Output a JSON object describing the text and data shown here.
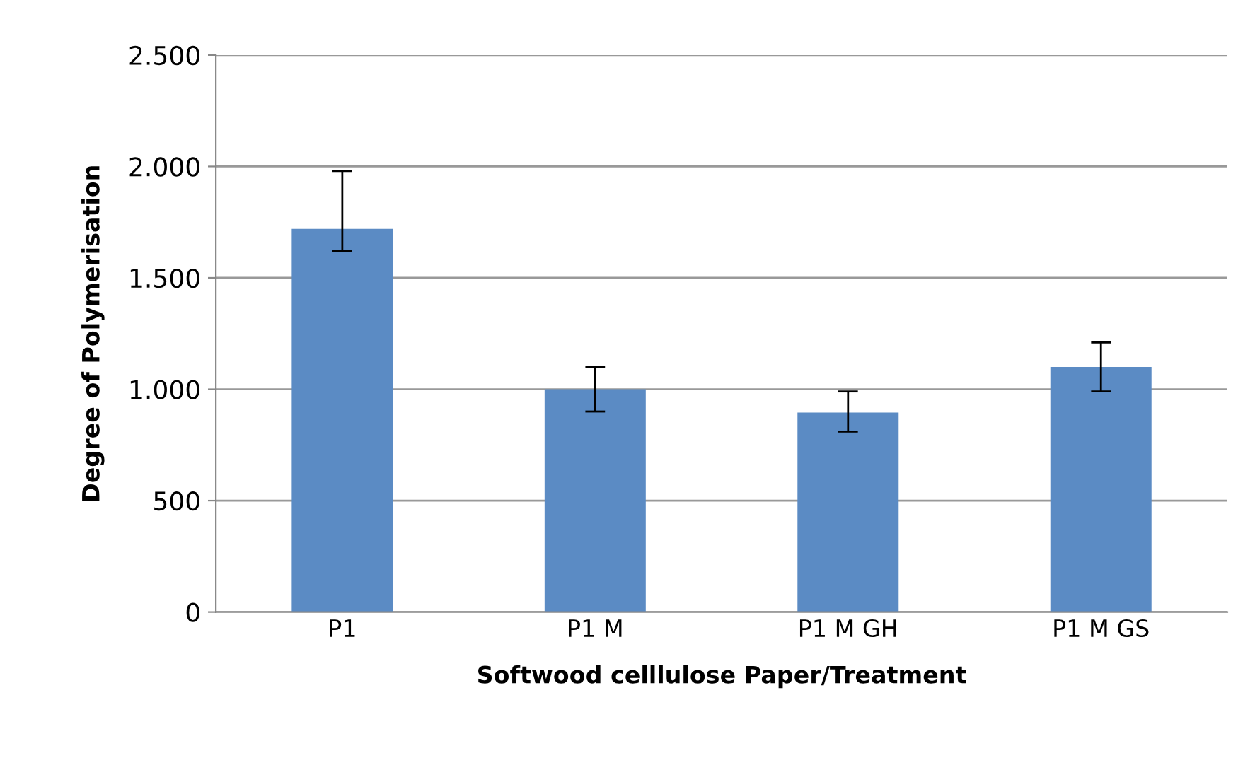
{
  "chart_data": {
    "type": "bar",
    "xlabel": "Softwood celllulose Paper/Treatment",
    "ylabel": "Degree of Polymerisation",
    "categories": [
      "P1",
      "P1 M",
      "P1 M GH",
      "P1 M GS"
    ],
    "values": [
      1720,
      1000,
      895,
      1100
    ],
    "errors": [
      [
        1620,
        1980
      ],
      [
        900,
        1100
      ],
      [
        810,
        990
      ],
      [
        990,
        1210
      ]
    ],
    "color": "#5b8bc4",
    "ylim": [
      0,
      2500
    ],
    "yticks": [
      0,
      500,
      {
        "value": 1000,
        "label": "1.000"
      },
      {
        "value": 1500,
        "label": "1.500"
      },
      {
        "value": 2000,
        "label": "2.000"
      },
      {
        "value": 2500,
        "label": "2.500"
      }
    ],
    "grid": "y"
  }
}
